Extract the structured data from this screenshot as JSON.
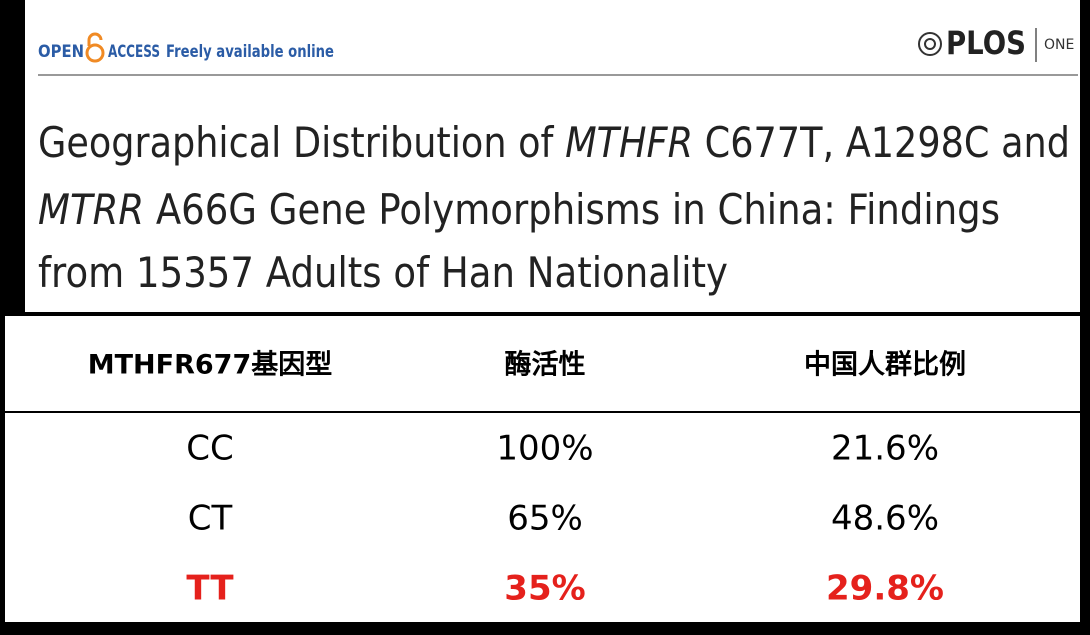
{
  "header": {
    "open": "OPEN",
    "access": "ACCESS",
    "tagline": "Freely available online",
    "publisher": "PLOS",
    "journal": "ONE"
  },
  "title": [
    [
      {
        "text": "Geographical Distribution of "
      },
      {
        "text": "MTHFR",
        "italic": true
      },
      {
        "text": " C677T, A1298C and"
      }
    ],
    [
      {
        "text": "MTRR",
        "italic": true
      },
      {
        "text": " A66G Gene Polymorphisms in China: Findings"
      }
    ],
    [
      {
        "text": "from 15357 Adults of Han Nationality"
      }
    ]
  ],
  "table": {
    "header": [
      "MTHFR677基因型",
      "酶活性",
      "中国人群比例"
    ],
    "rows": [
      {
        "cells": [
          "CC",
          "100%",
          "21.6%"
        ]
      },
      {
        "cells": [
          "CT",
          "65%",
          "48.6%"
        ]
      },
      {
        "cells": [
          "TT",
          "35%",
          "29.8%"
        ],
        "color": "#e5211c",
        "bold": true
      }
    ]
  }
}
